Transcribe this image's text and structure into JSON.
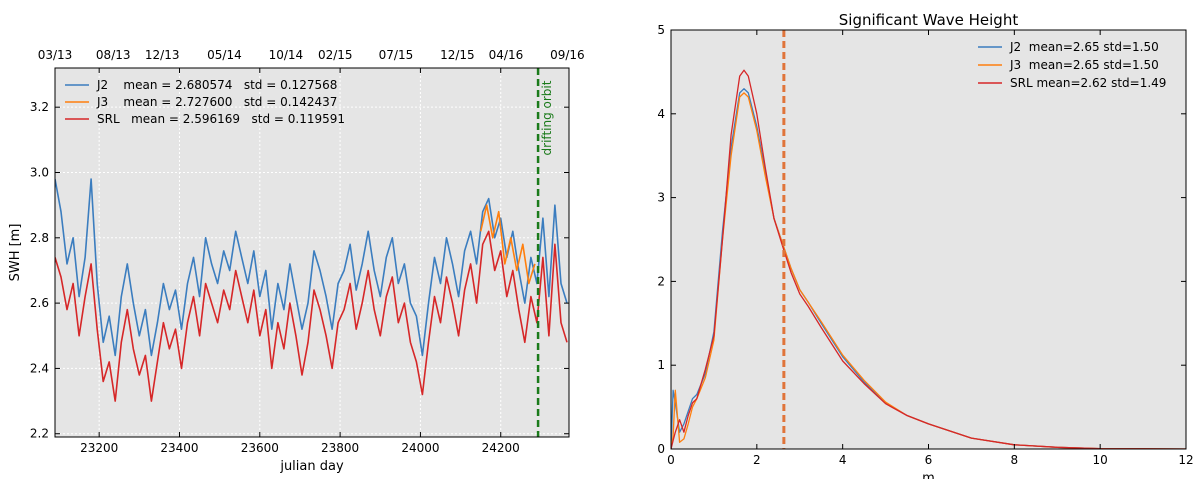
{
  "chart_data": [
    {
      "type": "line",
      "title": "",
      "xlabel": "julian day",
      "ylabel": "SWH [m]",
      "xlim": [
        23090,
        24370
      ],
      "ylim": [
        2.19,
        3.32
      ],
      "xticks": [
        "23200",
        "23400",
        "23600",
        "23800",
        "24000",
        "24200"
      ],
      "xtick_values": [
        23200,
        23400,
        23600,
        23800,
        24000,
        24200
      ],
      "yticks": [
        "2.2",
        "2.4",
        "2.6",
        "2.8",
        "3.0",
        "3.2"
      ],
      "ytick_values": [
        2.2,
        2.4,
        2.6,
        2.8,
        3.0,
        3.2
      ],
      "top_xticks": [
        "03/13",
        "08/13",
        "12/13",
        "05/14",
        "10/14",
        "02/15",
        "07/15",
        "12/15",
        "04/16",
        "09/16"
      ],
      "top_xtick_values": [
        23085,
        23235,
        23357,
        23512,
        23665,
        23788,
        23939,
        24092,
        24213,
        24366
      ],
      "grid": true,
      "legend": "top-left",
      "series": [
        {
          "name": "J2    mean = 2.680574   std = 0.127568",
          "color": "#3b7dbf",
          "x": [
            23090,
            23105,
            23120,
            23135,
            23150,
            23165,
            23180,
            23195,
            23210,
            23225,
            23240,
            23255,
            23270,
            23285,
            23300,
            23315,
            23330,
            23345,
            23360,
            23375,
            23390,
            23405,
            23420,
            23435,
            23450,
            23465,
            23480,
            23495,
            23510,
            23525,
            23540,
            23555,
            23570,
            23585,
            23600,
            23615,
            23630,
            23645,
            23660,
            23675,
            23690,
            23705,
            23720,
            23735,
            23750,
            23765,
            23780,
            23795,
            23810,
            23825,
            23840,
            23855,
            23870,
            23885,
            23900,
            23915,
            23930,
            23945,
            23960,
            23975,
            23990,
            24005,
            24020,
            24035,
            24050,
            24065,
            24080,
            24095,
            24110,
            24125,
            24140,
            24155,
            24170,
            24185,
            24200,
            24215,
            24230,
            24245,
            24260,
            24275,
            24290,
            24305,
            24320,
            24335,
            24350,
            24365
          ],
          "y": [
            2.98,
            2.88,
            2.72,
            2.8,
            2.62,
            2.74,
            2.98,
            2.66,
            2.48,
            2.56,
            2.44,
            2.62,
            2.72,
            2.6,
            2.5,
            2.58,
            2.44,
            2.54,
            2.66,
            2.58,
            2.64,
            2.52,
            2.66,
            2.74,
            2.62,
            2.8,
            2.72,
            2.66,
            2.76,
            2.7,
            2.82,
            2.74,
            2.66,
            2.76,
            2.62,
            2.7,
            2.52,
            2.66,
            2.58,
            2.72,
            2.62,
            2.52,
            2.6,
            2.76,
            2.7,
            2.62,
            2.52,
            2.66,
            2.7,
            2.78,
            2.64,
            2.72,
            2.82,
            2.7,
            2.62,
            2.74,
            2.8,
            2.66,
            2.72,
            2.6,
            2.56,
            2.44,
            2.6,
            2.74,
            2.66,
            2.8,
            2.72,
            2.62,
            2.76,
            2.82,
            2.72,
            2.88,
            2.92,
            2.8,
            2.86,
            2.74,
            2.82,
            2.7,
            2.6,
            2.74,
            2.66,
            2.86,
            2.62,
            2.9,
            2.66,
            2.6
          ]
        },
        {
          "name": "J3    mean = 2.727600   std = 0.142437",
          "color": "#ff7f0e",
          "x": [
            24150,
            24165,
            24180,
            24195,
            24210,
            24225,
            24240,
            24255,
            24270,
            24285
          ],
          "y": [
            2.82,
            2.9,
            2.8,
            2.88,
            2.72,
            2.8,
            2.7,
            2.78,
            2.66,
            2.72
          ]
        },
        {
          "name": "SRL   mean = 2.596169   std = 0.119591",
          "color": "#d62728",
          "x": [
            23090,
            23105,
            23120,
            23135,
            23150,
            23165,
            23180,
            23195,
            23210,
            23225,
            23240,
            23255,
            23270,
            23285,
            23300,
            23315,
            23330,
            23345,
            23360,
            23375,
            23390,
            23405,
            23420,
            23435,
            23450,
            23465,
            23480,
            23495,
            23510,
            23525,
            23540,
            23555,
            23570,
            23585,
            23600,
            23615,
            23630,
            23645,
            23660,
            23675,
            23690,
            23705,
            23720,
            23735,
            23750,
            23765,
            23780,
            23795,
            23810,
            23825,
            23840,
            23855,
            23870,
            23885,
            23900,
            23915,
            23930,
            23945,
            23960,
            23975,
            23990,
            24005,
            24020,
            24035,
            24050,
            24065,
            24080,
            24095,
            24110,
            24125,
            24140,
            24155,
            24170,
            24185,
            24200,
            24215,
            24230,
            24245,
            24260,
            24275,
            24290,
            24305,
            24320,
            24335,
            24350,
            24365
          ],
          "y": [
            2.74,
            2.68,
            2.58,
            2.66,
            2.5,
            2.62,
            2.72,
            2.52,
            2.36,
            2.42,
            2.3,
            2.48,
            2.58,
            2.46,
            2.38,
            2.44,
            2.3,
            2.42,
            2.54,
            2.46,
            2.52,
            2.4,
            2.54,
            2.62,
            2.5,
            2.66,
            2.6,
            2.54,
            2.64,
            2.58,
            2.7,
            2.62,
            2.54,
            2.64,
            2.5,
            2.58,
            2.4,
            2.54,
            2.46,
            2.6,
            2.5,
            2.38,
            2.48,
            2.64,
            2.58,
            2.5,
            2.4,
            2.54,
            2.58,
            2.66,
            2.52,
            2.6,
            2.7,
            2.58,
            2.5,
            2.62,
            2.68,
            2.54,
            2.6,
            2.48,
            2.42,
            2.32,
            2.48,
            2.62,
            2.54,
            2.68,
            2.6,
            2.5,
            2.64,
            2.72,
            2.6,
            2.78,
            2.82,
            2.7,
            2.76,
            2.62,
            2.7,
            2.58,
            2.48,
            2.62,
            2.54,
            2.74,
            2.5,
            2.78,
            2.54,
            2.48
          ]
        }
      ],
      "annotations": [
        {
          "type": "vline",
          "x": 24293,
          "color": "#1a7a1a",
          "style": "dashed",
          "label": "drifting orbit"
        }
      ]
    },
    {
      "type": "line",
      "title": "Significant Wave Height",
      "xlabel": "m",
      "ylabel": "",
      "xlim": [
        0,
        12
      ],
      "ylim": [
        0,
        5
      ],
      "xticks": [
        "0",
        "2",
        "4",
        "6",
        "8",
        "10",
        "12"
      ],
      "xtick_values": [
        0,
        2,
        4,
        6,
        8,
        10,
        12
      ],
      "yticks": [
        "0",
        "1",
        "2",
        "3",
        "4",
        "5"
      ],
      "ytick_values": [
        0,
        1,
        2,
        3,
        4,
        5
      ],
      "grid": false,
      "legend": "top-right",
      "series": [
        {
          "name": "J2  mean=2.65 std=1.50",
          "color": "#3b7dbf",
          "x": [
            0,
            0.05,
            0.1,
            0.2,
            0.3,
            0.4,
            0.5,
            0.6,
            0.8,
            1.0,
            1.2,
            1.4,
            1.6,
            1.7,
            1.8,
            2.0,
            2.2,
            2.4,
            2.6,
            2.8,
            3.0,
            3.2,
            3.5,
            4.0,
            4.5,
            5.0,
            5.5,
            6.0,
            7.0,
            8.0,
            9.0,
            10.0,
            11.0,
            12.0
          ],
          "y": [
            0,
            0.7,
            0.55,
            0.2,
            0.3,
            0.45,
            0.6,
            0.65,
            0.9,
            1.4,
            2.6,
            3.6,
            4.25,
            4.3,
            4.25,
            3.85,
            3.3,
            2.75,
            2.45,
            2.15,
            1.9,
            1.75,
            1.5,
            1.1,
            0.8,
            0.55,
            0.4,
            0.3,
            0.13,
            0.05,
            0.02,
            0.005,
            0.002,
            0
          ]
        },
        {
          "name": "J3  mean=2.65 std=1.50",
          "color": "#ff7f0e",
          "x": [
            0,
            0.05,
            0.1,
            0.2,
            0.3,
            0.4,
            0.5,
            0.6,
            0.8,
            1.0,
            1.2,
            1.4,
            1.6,
            1.7,
            1.8,
            2.0,
            2.2,
            2.4,
            2.6,
            2.8,
            3.0,
            3.2,
            3.5,
            4.0,
            4.5,
            5.0,
            5.5,
            6.0,
            7.0,
            8.0,
            9.0,
            10.0,
            11.0,
            12.0
          ],
          "y": [
            0,
            0.15,
            0.7,
            0.08,
            0.12,
            0.3,
            0.5,
            0.6,
            0.85,
            1.3,
            2.5,
            3.5,
            4.2,
            4.25,
            4.2,
            3.8,
            3.25,
            2.75,
            2.45,
            2.15,
            1.9,
            1.75,
            1.52,
            1.12,
            0.82,
            0.56,
            0.4,
            0.3,
            0.13,
            0.05,
            0.02,
            0.005,
            0.002,
            0
          ]
        },
        {
          "name": "SRL mean=2.62 std=1.49",
          "color": "#d62728",
          "x": [
            0,
            0.05,
            0.1,
            0.2,
            0.3,
            0.4,
            0.5,
            0.6,
            0.8,
            1.0,
            1.2,
            1.4,
            1.6,
            1.7,
            1.8,
            2.0,
            2.2,
            2.4,
            2.6,
            2.8,
            3.0,
            3.2,
            3.5,
            4.0,
            4.5,
            5.0,
            5.5,
            6.0,
            7.0,
            8.0,
            9.0,
            10.0,
            11.0,
            12.0
          ],
          "y": [
            0,
            0.1,
            0.2,
            0.35,
            0.2,
            0.4,
            0.55,
            0.6,
            0.95,
            1.35,
            2.5,
            3.75,
            4.45,
            4.52,
            4.45,
            4.0,
            3.35,
            2.75,
            2.42,
            2.1,
            1.85,
            1.7,
            1.45,
            1.05,
            0.78,
            0.54,
            0.4,
            0.3,
            0.13,
            0.05,
            0.02,
            0.005,
            0.002,
            0
          ]
        }
      ],
      "annotations": [
        {
          "type": "vline",
          "x": 2.63,
          "color": "#e0743a",
          "style": "dashed",
          "label": ""
        }
      ]
    }
  ]
}
